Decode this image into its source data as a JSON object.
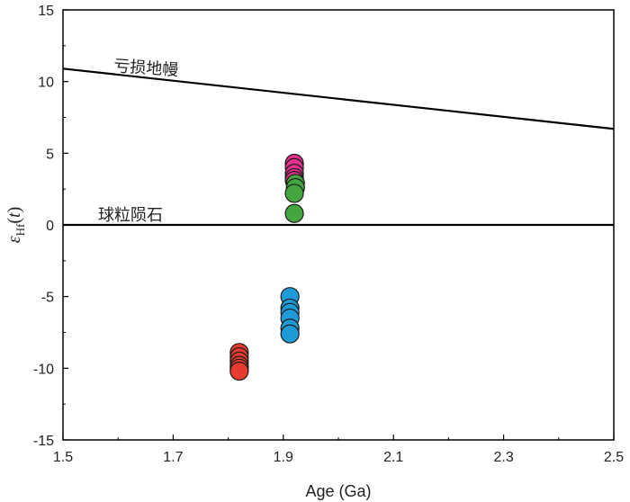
{
  "chart_data": {
    "type": "scatter",
    "title": "",
    "xlabel": "Age (Ga)",
    "ylabel": {
      "symbol": "ε",
      "subscript": "Hf",
      "suffix": "(",
      "var": "t",
      "close": ")"
    },
    "xlim": [
      1.5,
      2.5
    ],
    "ylim": [
      -15,
      15
    ],
    "x_ticks": [
      1.5,
      1.7,
      1.9,
      2.1,
      2.3,
      2.5
    ],
    "x_tick_labels": [
      "1.5",
      "1.7",
      "1.9",
      "2.1",
      "2.3",
      "2.5"
    ],
    "y_ticks": [
      15,
      10,
      5,
      0,
      -5,
      -10,
      -15
    ],
    "y_tick_labels": [
      "15",
      "10",
      "5",
      "0",
      "-5",
      "-10",
      "-15"
    ],
    "reference_lines": [
      {
        "name": "depleted-mantle",
        "label": "亏损地幔",
        "x": [
          1.5,
          2.5
        ],
        "y": [
          10.9,
          6.7
        ]
      },
      {
        "name": "chur",
        "label": "球粒陨石",
        "x": [
          1.5,
          2.5
        ],
        "y": [
          0,
          0
        ]
      }
    ],
    "series": [
      {
        "name": "magenta",
        "color": "#e8308c",
        "x": [
          1.92,
          1.92,
          1.92,
          1.92,
          1.92
        ],
        "y": [
          4.3,
          4.0,
          3.6,
          3.3,
          3.1
        ]
      },
      {
        "name": "green",
        "color": "#43a63e",
        "x": [
          1.922,
          1.922,
          1.92,
          1.92
        ],
        "y": [
          2.9,
          2.6,
          2.2,
          0.8
        ]
      },
      {
        "name": "blue",
        "color": "#1e9bd7",
        "x": [
          1.912,
          1.912,
          1.912,
          1.912,
          1.912,
          1.912
        ],
        "y": [
          -5.0,
          -5.8,
          -6.1,
          -6.5,
          -7.2,
          -7.6
        ]
      },
      {
        "name": "red",
        "color": "#e63b2e",
        "x": [
          1.82,
          1.82,
          1.82,
          1.82,
          1.82,
          1.82
        ],
        "y": [
          -8.9,
          -9.2,
          -9.5,
          -9.8,
          -10.0,
          -10.2
        ]
      }
    ]
  }
}
